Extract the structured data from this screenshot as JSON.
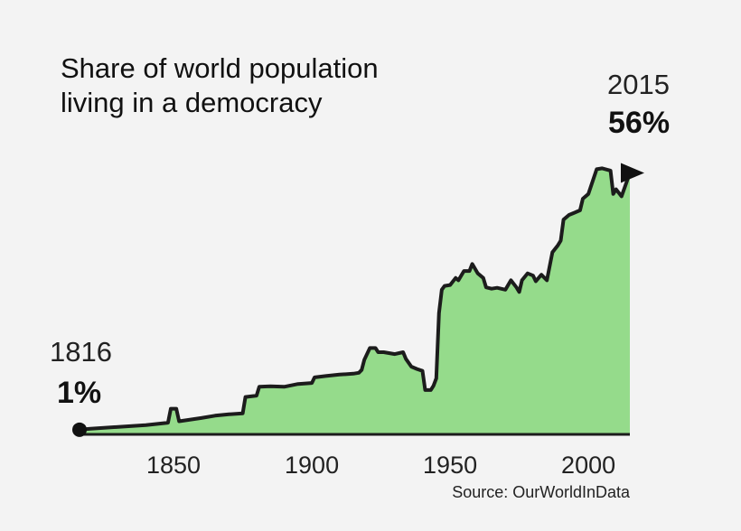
{
  "chart_data": {
    "type": "area",
    "title_lines": [
      "Share of world population",
      "living in a democracy"
    ],
    "xlabel": "",
    "ylabel": "",
    "xlim": [
      1816,
      2015
    ],
    "ylim": [
      0,
      65
    ],
    "x_ticks": [
      1850,
      1900,
      1950,
      2000
    ],
    "grid": false,
    "legend": "none",
    "source": "Source: OurWorldInData",
    "colors": {
      "fill": "#95db8b",
      "line": "#1c1c1c",
      "background": "#f3f3f3"
    },
    "start": {
      "year": "1816",
      "value": "1%"
    },
    "end": {
      "year": "2015",
      "value": "56%"
    },
    "series": [
      {
        "x": [
          1816,
          1820,
          1830,
          1840,
          1848,
          1849,
          1851,
          1852,
          1860,
          1865,
          1870,
          1875,
          1876,
          1880,
          1881,
          1885,
          1890,
          1895,
          1900,
          1901,
          1905,
          1910,
          1915,
          1917,
          1918,
          1919,
          1921,
          1923,
          1924,
          1926,
          1930,
          1933,
          1934,
          1936,
          1938,
          1940,
          1941,
          1943,
          1944,
          1945,
          1946,
          1947,
          1948,
          1950,
          1952,
          1953,
          1955,
          1957,
          1958,
          1960,
          1962,
          1963,
          1965,
          1967,
          1970,
          1972,
          1974,
          1975,
          1976,
          1978,
          1980,
          1981,
          1983,
          1985,
          1987,
          1989,
          1990,
          1991,
          1993,
          1995,
          1997,
          1998,
          2000,
          2003,
          2005,
          2008,
          2009,
          2010,
          2012,
          2015
        ],
        "y": [
          1,
          1.2,
          1.6,
          2.0,
          2.5,
          5.5,
          5.5,
          2.8,
          3.5,
          4.0,
          4.3,
          4.5,
          8.0,
          8.3,
          10.2,
          10.3,
          10.2,
          10.8,
          11.0,
          12.2,
          12.5,
          12.8,
          13.0,
          13.2,
          13.8,
          16.0,
          18.5,
          18.5,
          17.6,
          17.6,
          17.2,
          17.6,
          16.2,
          14.5,
          14.0,
          13.6,
          9.5,
          9.5,
          10.4,
          12.0,
          26.0,
          31.0,
          31.8,
          32.0,
          33.5,
          33.0,
          35.0,
          35.0,
          36.5,
          34.5,
          33.5,
          31.5,
          31.2,
          31.4,
          31.0,
          33.0,
          31.5,
          30.5,
          33.0,
          34.5,
          34.0,
          32.8,
          34.2,
          33.0,
          39.0,
          40.5,
          41.5,
          46.0,
          47.0,
          47.5,
          48.0,
          50.5,
          51.5,
          56.8,
          57.0,
          56.5,
          51.5,
          52.5,
          51.0,
          56.0
        ]
      }
    ]
  }
}
